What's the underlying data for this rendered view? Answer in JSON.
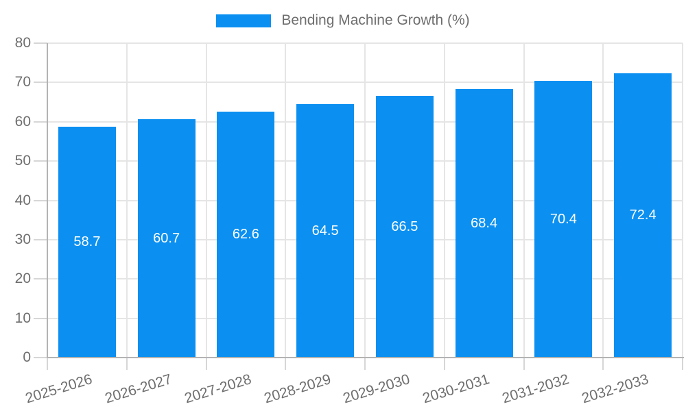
{
  "chart_data": {
    "type": "bar",
    "title": "",
    "legend": "Bending Machine Growth (%)",
    "legend_position": "top",
    "categories": [
      "2025-2026",
      "2026-2027",
      "2027-2028",
      "2028-2029",
      "2029-2030",
      "2030-2031",
      "2031-2032",
      "2032-2033"
    ],
    "values": [
      58.7,
      60.7,
      62.6,
      64.5,
      66.5,
      68.4,
      70.4,
      72.4
    ],
    "xlabel": "",
    "ylabel": "",
    "ylim": [
      0,
      80
    ],
    "yticks": [
      0,
      10,
      20,
      30,
      40,
      50,
      60,
      70,
      80
    ],
    "grid": true,
    "bar_labels_inside": true,
    "colors": {
      "bar": "#0b90f1",
      "bar_label": "#ffffff",
      "axis_text": "#6e6e6e",
      "gridline": "#e5e5e5",
      "axis_line": "#b3b3b3",
      "tick": "#d6d6d6",
      "background": "#ffffff"
    }
  }
}
